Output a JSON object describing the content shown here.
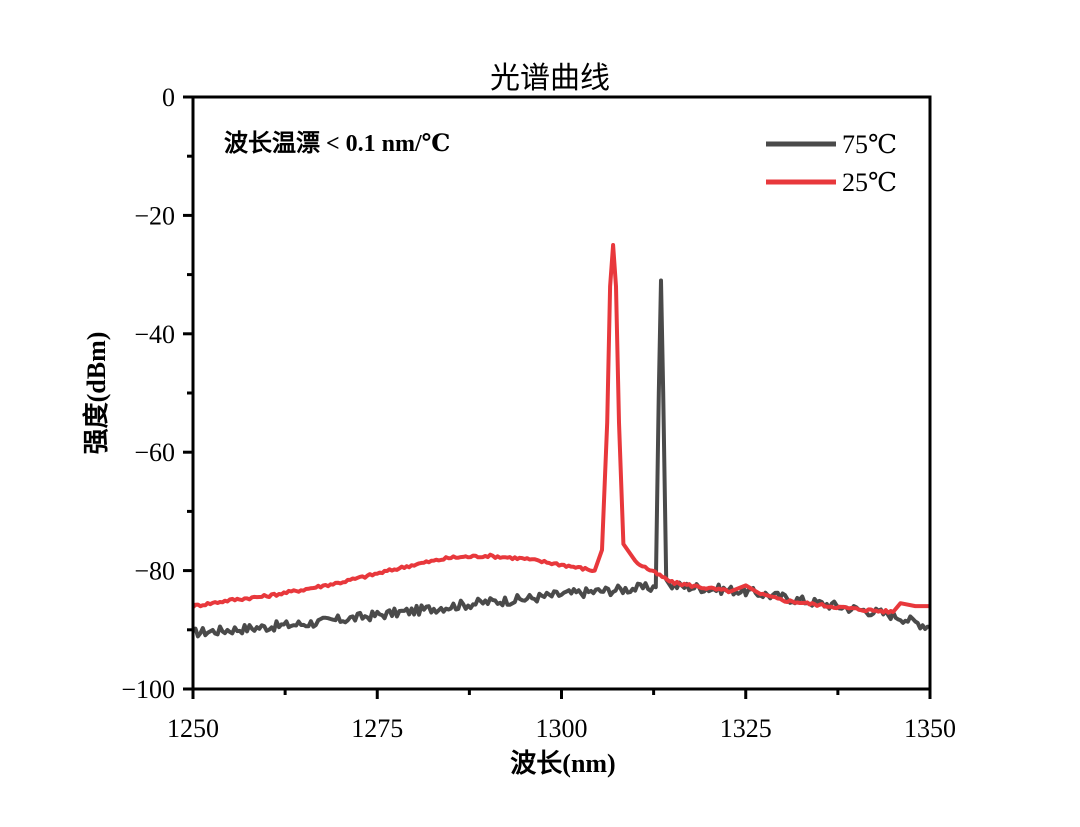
{
  "chart_data": {
    "type": "line",
    "title": "光谱曲线",
    "xlabel": "波长(nm)",
    "ylabel": "强度(dBm)",
    "annotation": "波长温漂 < 0.1 nm/℃",
    "xlim": [
      1250,
      1350
    ],
    "ylim": [
      -100,
      0
    ],
    "xticks": [
      1250,
      1275,
      1300,
      1325,
      1350
    ],
    "xtick_labels": [
      "1250",
      "1275",
      "1300",
      "1325",
      "1350"
    ],
    "yticks": [
      0,
      -20,
      -40,
      -60,
      -80,
      -100
    ],
    "ytick_labels": [
      "0",
      "−20",
      "−40",
      "−60",
      "−80",
      "−100"
    ],
    "grid": false,
    "legend_position": "top-right",
    "series": [
      {
        "name": "75℃",
        "color": "#4a4a4a",
        "x": [
          1250,
          1255,
          1260,
          1265,
          1270,
          1275,
          1280,
          1285,
          1290,
          1295,
          1300,
          1305,
          1310,
          1312.8,
          1313.2,
          1313.5,
          1313.8,
          1314.2,
          1315,
          1320,
          1325,
          1330,
          1335,
          1340,
          1345,
          1350
        ],
        "y": [
          -90.5,
          -90.0,
          -89.5,
          -89.0,
          -88.3,
          -87.5,
          -86.8,
          -86.0,
          -85.3,
          -84.8,
          -84.0,
          -83.5,
          -83.0,
          -82.8,
          -50,
          -31,
          -50,
          -81.5,
          -82.5,
          -83.0,
          -83.5,
          -84.5,
          -85.5,
          -86.5,
          -87.5,
          -89.5
        ]
      },
      {
        "name": "25℃",
        "color": "#e8383c",
        "x": [
          1250,
          1255,
          1260,
          1265,
          1270,
          1275,
          1280,
          1285,
          1290,
          1295,
          1300,
          1304.5,
          1305.5,
          1306.2,
          1306.6,
          1307.0,
          1307.4,
          1307.8,
          1308.4,
          1310,
          1315,
          1320,
          1323,
          1325,
          1327,
          1330,
          1335,
          1340,
          1345,
          1346,
          1348,
          1350
        ],
        "y": [
          -86.0,
          -85.0,
          -84.3,
          -83.2,
          -82.0,
          -80.5,
          -79.0,
          -77.8,
          -77.5,
          -78.0,
          -79.0,
          -80.0,
          -76.5,
          -55,
          -32,
          -25,
          -32,
          -55,
          -75.5,
          -78.5,
          -82.0,
          -83.0,
          -83.5,
          -82.5,
          -84.0,
          -85.0,
          -85.8,
          -86.5,
          -87.0,
          -85.5,
          -86.0,
          -86.0
        ]
      }
    ]
  }
}
